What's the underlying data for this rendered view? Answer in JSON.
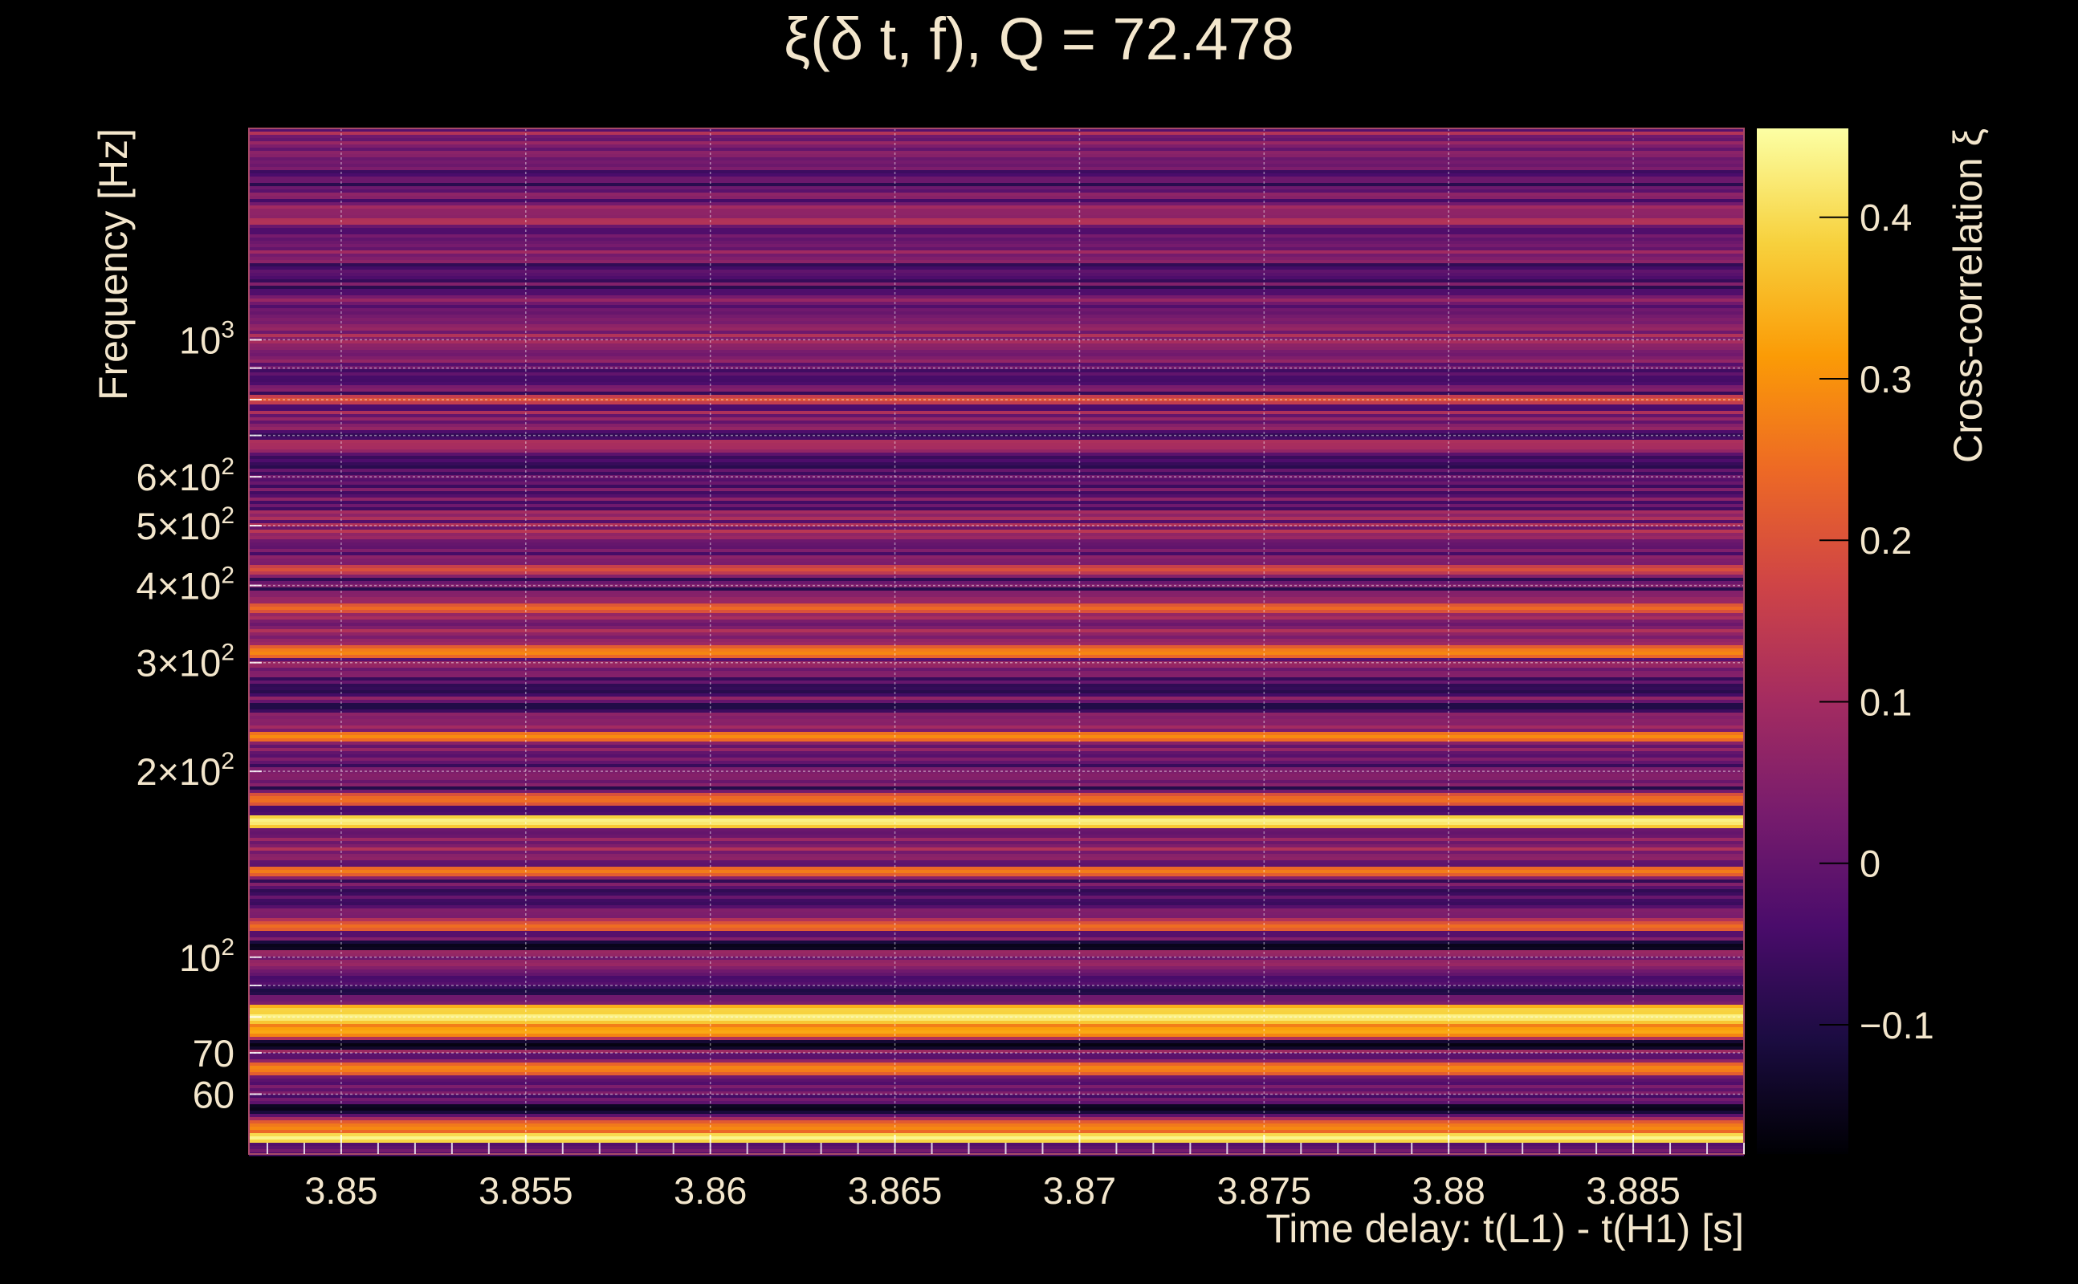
{
  "chart_data": {
    "type": "heatmap",
    "title": "ξ(δ t, f), Q = 72.478",
    "xlabel": "Time delay: t(L1) - t(H1) [s]",
    "ylabel": "Frequency [Hz]",
    "colorbar_label": "Cross-correlation ξ",
    "x_range": [
      3.8475,
      3.888
    ],
    "x_ticks": [
      3.85,
      3.855,
      3.86,
      3.865,
      3.87,
      3.875,
      3.88,
      3.885
    ],
    "x_tick_labels": [
      "3.85",
      "3.855",
      "3.86",
      "3.865",
      "3.87",
      "3.875",
      "3.88",
      "3.885"
    ],
    "y_scale": "log",
    "y_range": [
      48,
      2200
    ],
    "y_ticks": [
      {
        "value": 60,
        "base": "60",
        "sup": ""
      },
      {
        "value": 70,
        "base": "70",
        "sup": ""
      },
      {
        "value": 100,
        "base": "10",
        "sup": "2"
      },
      {
        "value": 200,
        "base": "2×10",
        "sup": "2"
      },
      {
        "value": 300,
        "base": "3×10",
        "sup": "2"
      },
      {
        "value": 400,
        "base": "4×10",
        "sup": "2"
      },
      {
        "value": 500,
        "base": "5×10",
        "sup": "2"
      },
      {
        "value": 600,
        "base": "6×10",
        "sup": "2"
      },
      {
        "value": 1000,
        "base": "10",
        "sup": "3"
      }
    ],
    "y_gridlines": [
      60,
      70,
      80,
      90,
      100,
      200,
      300,
      400,
      500,
      600,
      700,
      800,
      900,
      1000
    ],
    "colorbar_range": [
      -0.18,
      0.455
    ],
    "colorbar_ticks": [
      -0.1,
      0,
      0.1,
      0.2,
      0.3,
      0.4
    ],
    "colorbar_tick_labels": [
      "−0.1",
      "0",
      "0.1",
      "0.2",
      "0.3",
      "0.4"
    ],
    "colormap": [
      "#000004",
      "#1b0c41",
      "#4a0c6b",
      "#781c6d",
      "#a52c60",
      "#cf4446",
      "#ed6925",
      "#fb9b06",
      "#f7d13d",
      "#fcffa4"
    ],
    "bright_bands": [
      {
        "freq": 51,
        "value": 0.44
      },
      {
        "freq": 53,
        "value": 0.3
      },
      {
        "freq": 66,
        "value": 0.3
      },
      {
        "freq": 76,
        "value": 0.35
      },
      {
        "freq": 80,
        "value": 0.45
      },
      {
        "freq": 82,
        "value": 0.4
      },
      {
        "freq": 112,
        "value": 0.26
      },
      {
        "freq": 138,
        "value": 0.28
      },
      {
        "freq": 166,
        "value": 0.45
      },
      {
        "freq": 180,
        "value": 0.27
      },
      {
        "freq": 228,
        "value": 0.3
      },
      {
        "freq": 312,
        "value": 0.3
      },
      {
        "freq": 368,
        "value": 0.25
      },
      {
        "freq": 425,
        "value": 0.2
      },
      {
        "freq": 800,
        "value": 0.2
      }
    ],
    "dark_bands": [
      {
        "freq": 57,
        "value": -0.17
      },
      {
        "freq": 72,
        "value": -0.17
      },
      {
        "freq": 88,
        "value": -0.12
      },
      {
        "freq": 104,
        "value": -0.17
      },
      {
        "freq": 255,
        "value": -0.12
      },
      {
        "freq": 270,
        "value": -0.1
      },
      {
        "freq": 700,
        "value": -0.08
      },
      {
        "freq": 1500,
        "value": -0.05
      }
    ],
    "grid": true
  }
}
